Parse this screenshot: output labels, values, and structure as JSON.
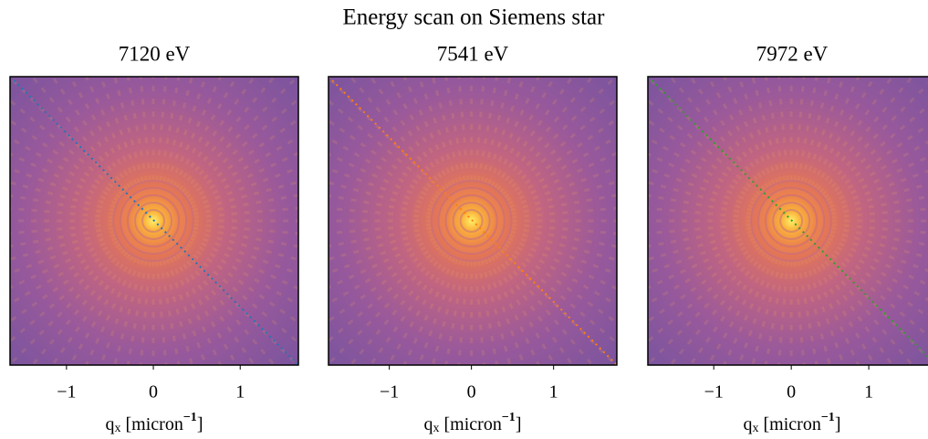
{
  "title": "Energy scan on Siemens star",
  "chart_data": [
    {
      "type": "image",
      "title": "7120 eV",
      "xlabel": [
        "q",
        "x",
        " [micron",
        "−1",
        "]"
      ],
      "xlim": [
        -1.65,
        1.67
      ],
      "xticks": [
        {
          "value": -1,
          "label": "−1"
        },
        0,
        1
      ],
      "line_color": "#1f77b4"
    },
    {
      "type": "image",
      "title": "7541 eV",
      "xlabel": [
        "q",
        "x",
        " [micron",
        "−1",
        "]"
      ],
      "xlim": [
        -1.74,
        1.77
      ],
      "xticks": [
        {
          "value": -1,
          "label": "−1"
        },
        0,
        1
      ],
      "line_color": "#ff7f0e"
    },
    {
      "type": "image",
      "title": "7972 eV",
      "xlabel": [
        "q",
        "x",
        " [micron",
        "−1",
        "]"
      ],
      "xlim": [
        -1.85,
        1.87
      ],
      "xticks": [
        {
          "value": -1,
          "label": "−1"
        },
        0,
        1
      ],
      "line_color": "#2ca02c"
    }
  ]
}
